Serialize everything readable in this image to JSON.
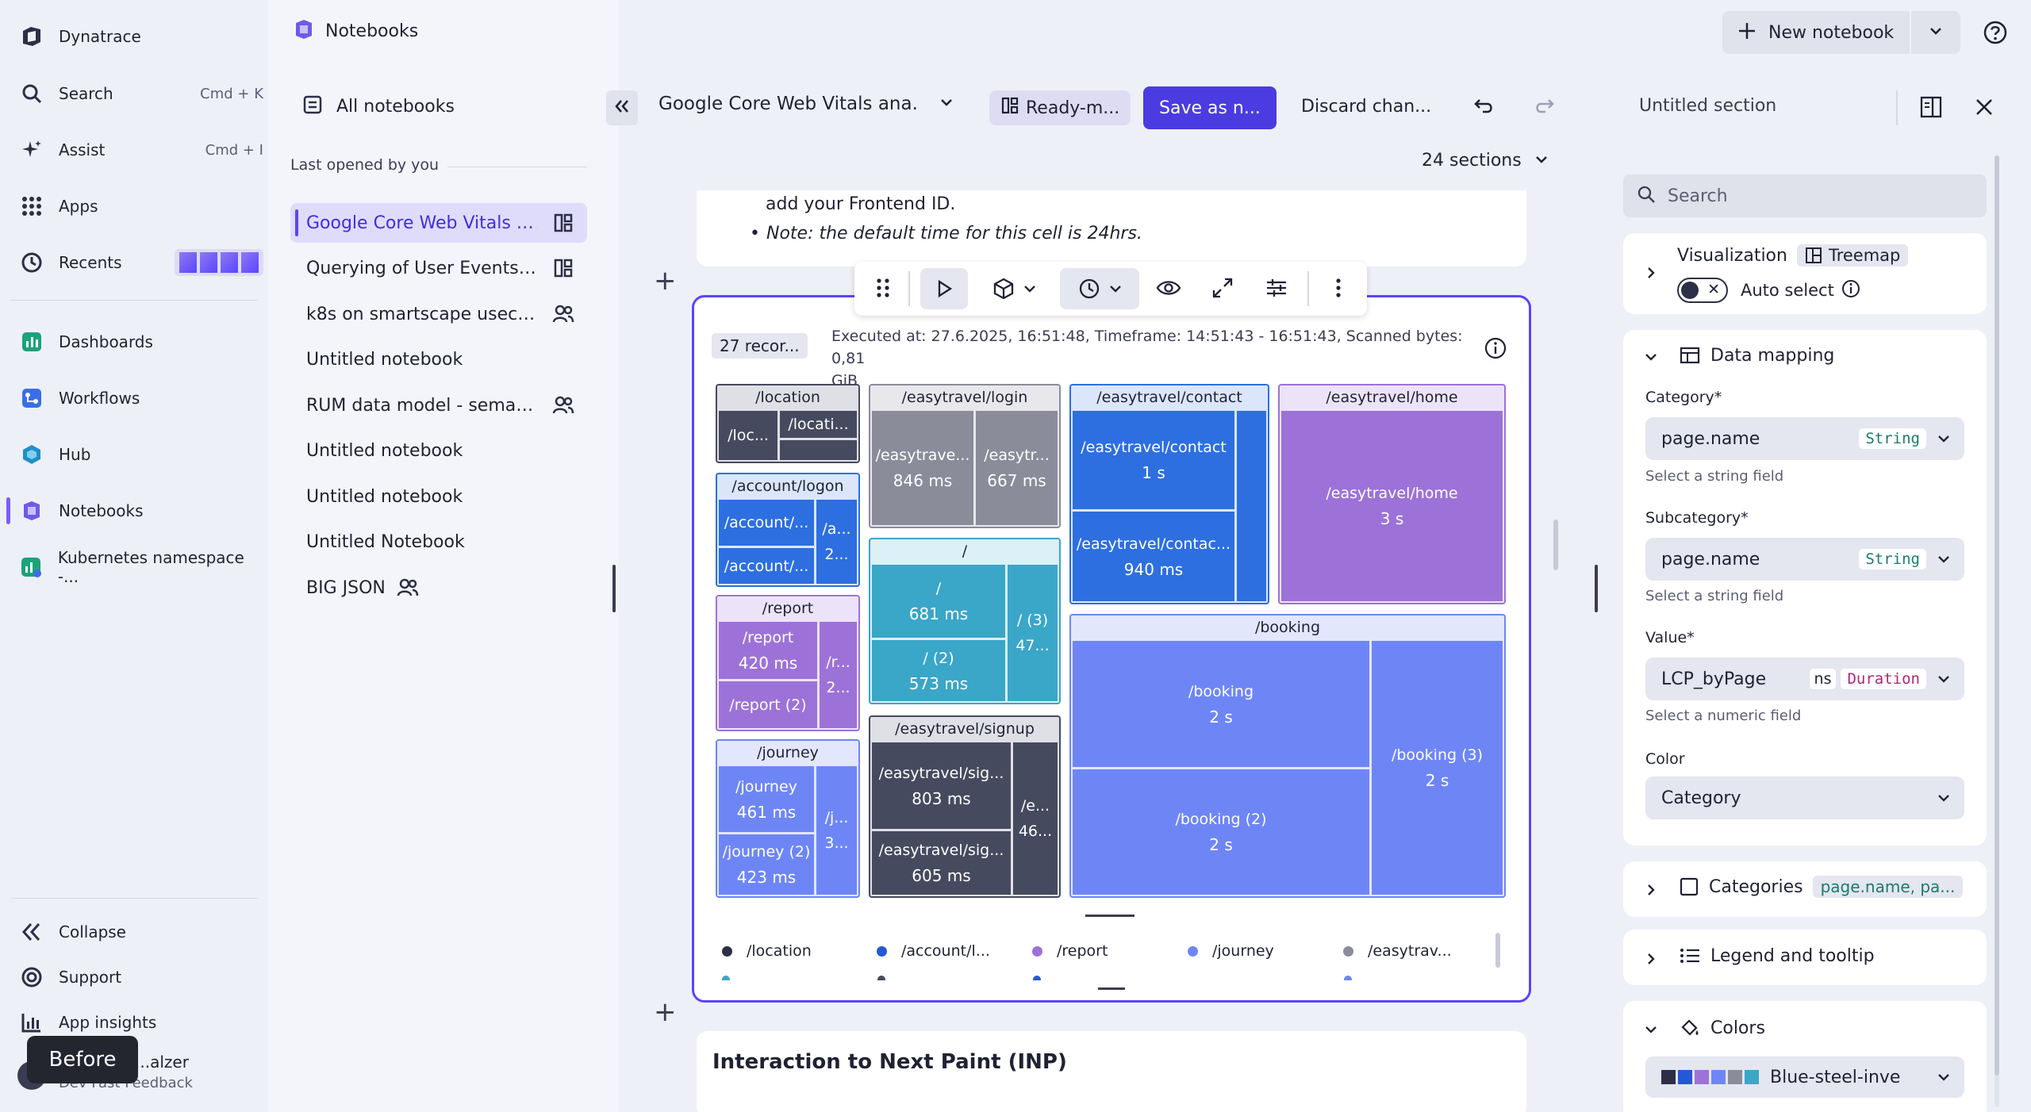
{
  "nav": {
    "brand": "Dynatrace",
    "items": [
      {
        "label": "Search",
        "shortcut": "Cmd + K"
      },
      {
        "label": "Assist",
        "shortcut": "Cmd + I"
      },
      {
        "label": "Apps"
      },
      {
        "label": "Recents"
      },
      {
        "label": "Dashboards"
      },
      {
        "label": "Workflows"
      },
      {
        "label": "Hub"
      },
      {
        "label": "Notebooks"
      },
      {
        "label": "Kubernetes namespace -..."
      }
    ],
    "bottom": [
      {
        "label": "Collapse"
      },
      {
        "label": "Support"
      },
      {
        "label": "App insights"
      }
    ],
    "user_name": "...alzer",
    "user_sub": "Dev Fast Feedback",
    "before_tag": "Before"
  },
  "notebooks": {
    "app_title": "Notebooks",
    "all_label": "All notebooks",
    "section_label": "Last opened by you",
    "items": [
      {
        "label": "Google Core Web Vitals a...",
        "icon": "dashboard-icon"
      },
      {
        "label": "Querying of User Events ...",
        "icon": "dashboard-icon"
      },
      {
        "label": "k8s on smartscape useca...",
        "icon": "shared-icon"
      },
      {
        "label": "Untitled notebook"
      },
      {
        "label": "RUM data model - seman...",
        "icon": "shared-icon"
      },
      {
        "label": "Untitled notebook"
      },
      {
        "label": "Untitled notebook"
      },
      {
        "label": "Untitled Notebook"
      },
      {
        "label": "BIG JSON",
        "icon": "shared-icon"
      }
    ]
  },
  "header": {
    "new_notebook": "New notebook"
  },
  "toolbar": {
    "doc_title": "Google Core Web Vitals ana...",
    "ready_label": "Ready-m...",
    "save_label": "Save as n...",
    "discard_label": "Discard chan...",
    "sections_label": "24 sections"
  },
  "cell_above": {
    "line1": "add your Frontend ID.",
    "line2": "Note: the default time for this cell is 24hrs."
  },
  "result": {
    "records": "27 recor...",
    "exec_info": "Executed at: 27.6.2025, 16:51:48, Timeframe: 14:51:43 - 16:51:43, Scanned bytes: 0,81",
    "exec_info2": "GiB"
  },
  "chart_data": {
    "type": "treemap",
    "groups": [
      {
        "name": "/location",
        "children": [
          {
            "name": "/loc..."
          },
          {
            "name": "/locati..."
          }
        ]
      },
      {
        "name": "/account/logon",
        "children": [
          {
            "name": "/account/..."
          },
          {
            "name": "/account/..."
          },
          {
            "name": "/a...",
            "value": "2..."
          }
        ]
      },
      {
        "name": "/report",
        "children": [
          {
            "name": "/report",
            "value": "420 ms"
          },
          {
            "name": "/report (2)"
          },
          {
            "name": "/r...",
            "value": "2..."
          }
        ]
      },
      {
        "name": "/journey",
        "children": [
          {
            "name": "/journey",
            "value": "461 ms"
          },
          {
            "name": "/journey (2)",
            "value": "423 ms"
          },
          {
            "name": "/j...",
            "value": "3..."
          }
        ]
      },
      {
        "name": "/easytravel/login",
        "children": [
          {
            "name": "/easytrave...",
            "value": "846 ms"
          },
          {
            "name": "/easytr...",
            "value": "667 ms"
          }
        ]
      },
      {
        "name": "/",
        "children": [
          {
            "name": "/",
            "value": "681 ms"
          },
          {
            "name": "/ (2)",
            "value": "573 ms"
          },
          {
            "name": "/ (3)",
            "value": "47..."
          }
        ]
      },
      {
        "name": "/easytravel/signup",
        "children": [
          {
            "name": "/easytravel/sig...",
            "value": "803 ms"
          },
          {
            "name": "/easytravel/sig...",
            "value": "605 ms"
          },
          {
            "name": "/e...",
            "value": "46..."
          }
        ]
      },
      {
        "name": "/easytravel/contact",
        "children": [
          {
            "name": "/easytravel/contact",
            "value": "1 s"
          },
          {
            "name": "/easytravel/contac...",
            "value": "940 ms"
          }
        ]
      },
      {
        "name": "/easytravel/home",
        "children": [
          {
            "name": "/easytravel/home",
            "value": "3 s"
          }
        ]
      },
      {
        "name": "/booking",
        "children": [
          {
            "name": "/booking",
            "value": "2 s"
          },
          {
            "name": "/booking (2)",
            "value": "2 s"
          },
          {
            "name": "/booking (3)",
            "value": "2 s"
          }
        ]
      }
    ],
    "legend": [
      "/location",
      "/account/l...",
      "/report",
      "/journey",
      "/easytrav..."
    ],
    "colors": {
      "location": "#464a5e",
      "account": "#2d6fe0",
      "report": "#9d72d8",
      "journey": "#6e86f5",
      "easy": "#8a8c9a",
      "root": "#3aa6c8"
    }
  },
  "next_cell": {
    "title": "Interaction to Next Paint (INP)"
  },
  "side": {
    "title": "Untitled section",
    "search_placeholder": "Search",
    "visualization_label": "Visualization",
    "visualization_value": "Treemap",
    "auto_select": "Auto select",
    "data_mapping": "Data mapping",
    "category_label": "Category*",
    "category_value": "page.name",
    "category_type": "String",
    "category_help": "Select a string field",
    "subcategory_label": "Subcategory*",
    "subcategory_value": "page.name",
    "subcategory_type": "String",
    "subcategory_help": "Select a string field",
    "value_label": "Value*",
    "value_value": "LCP_byPage",
    "value_unit": "ns",
    "value_type": "Duration",
    "value_help": "Select a numeric field",
    "color_label": "Color",
    "color_value": "Category",
    "categories_label": "Categories",
    "categories_value": "page.name, pa...",
    "legend_label": "Legend and tooltip",
    "colors_label": "Colors",
    "palette_value": "Blue-steel-inve"
  }
}
